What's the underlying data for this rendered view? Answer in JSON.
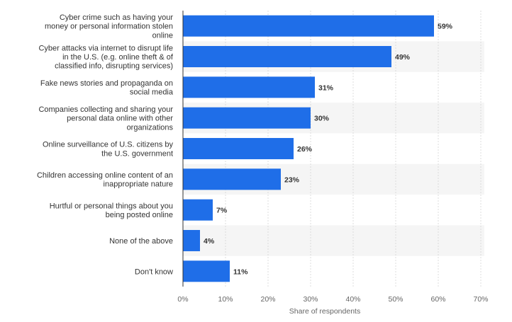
{
  "chart_data": {
    "type": "bar",
    "orientation": "horizontal",
    "categories": [
      [
        "Cyber crime such as having your",
        "money or personal information stolen",
        "online"
      ],
      [
        "Cyber attacks via internet to disrupt life",
        "in the U.S. (e.g. online theft & of",
        "classified info, disrupting services)"
      ],
      [
        "Fake news stories and propaganda on",
        "social media"
      ],
      [
        "Companies collecting and sharing your",
        "personal data online with other",
        "organizations"
      ],
      [
        "Online surveillance of U.S. citizens by",
        "the U.S. government"
      ],
      [
        "Children accessing online content of an",
        "inappropriate nature"
      ],
      [
        "Hurtful or personal things about you",
        "being posted online"
      ],
      [
        "None of the above"
      ],
      [
        "Don't know"
      ]
    ],
    "values": [
      59,
      49,
      31,
      30,
      26,
      23,
      7,
      4,
      11
    ],
    "value_labels": [
      "59%",
      "49%",
      "31%",
      "30%",
      "26%",
      "23%",
      "7%",
      "4%",
      "11%"
    ],
    "xlabel": "Share of respondents",
    "xlim": [
      0,
      70
    ],
    "ticks": [
      0,
      10,
      20,
      30,
      40,
      50,
      60,
      70
    ],
    "tick_labels": [
      "0%",
      "10%",
      "20%",
      "30%",
      "40%",
      "50%",
      "60%",
      "70%"
    ],
    "grid": true,
    "grid_style": "dashed vertical",
    "colors": {
      "bar": "#1f6ee8",
      "alt_row": "#f5f5f5",
      "grid": "#dcdcdc",
      "axis": "#333333"
    }
  }
}
